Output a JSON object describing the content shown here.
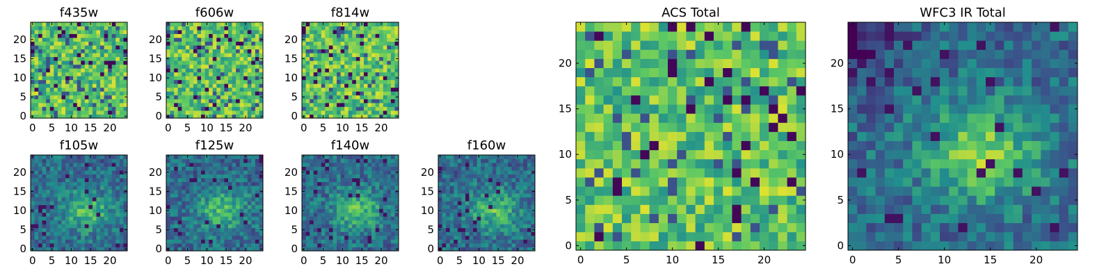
{
  "colormap": [
    "#440154",
    "#3b528b",
    "#21908d",
    "#5dc963",
    "#fde725"
  ],
  "chart_data": [
    {
      "type": "heatmap",
      "title": "f435w",
      "cmap": "viridis",
      "size": 25,
      "xlim": [
        0,
        25
      ],
      "ylim": [
        0,
        25
      ],
      "xticks": [
        0,
        5,
        10,
        15,
        20
      ],
      "yticks": [
        0,
        5,
        10,
        15,
        20
      ],
      "seed": 11,
      "style": "noise"
    },
    {
      "type": "heatmap",
      "title": "f606w",
      "cmap": "viridis",
      "size": 25,
      "xlim": [
        0,
        25
      ],
      "ylim": [
        0,
        25
      ],
      "xticks": [
        0,
        5,
        10,
        15,
        20
      ],
      "yticks": [
        0,
        5,
        10,
        15,
        20
      ],
      "seed": 23,
      "style": "noise"
    },
    {
      "type": "heatmap",
      "title": "f814w",
      "cmap": "viridis",
      "size": 25,
      "xlim": [
        0,
        25
      ],
      "ylim": [
        0,
        25
      ],
      "xticks": [
        0,
        5,
        10,
        15,
        20
      ],
      "yticks": [
        0,
        5,
        10,
        15,
        20
      ],
      "seed": 37,
      "style": "noise"
    },
    {
      "type": "heatmap",
      "title": "f105w",
      "cmap": "viridis",
      "size": 25,
      "xlim": [
        0,
        25
      ],
      "ylim": [
        0,
        25
      ],
      "xticks": [
        0,
        5,
        10,
        15,
        20
      ],
      "yticks": [
        0,
        5,
        10,
        15,
        20
      ],
      "seed": 41,
      "style": "blob"
    },
    {
      "type": "heatmap",
      "title": "f125w",
      "cmap": "viridis",
      "size": 25,
      "xlim": [
        0,
        25
      ],
      "ylim": [
        0,
        25
      ],
      "xticks": [
        0,
        5,
        10,
        15,
        20
      ],
      "yticks": [
        0,
        5,
        10,
        15,
        20
      ],
      "seed": 53,
      "style": "blob"
    },
    {
      "type": "heatmap",
      "title": "f140w",
      "cmap": "viridis",
      "size": 25,
      "xlim": [
        0,
        25
      ],
      "ylim": [
        0,
        25
      ],
      "xticks": [
        0,
        5,
        10,
        15,
        20
      ],
      "yticks": [
        0,
        5,
        10,
        15,
        20
      ],
      "seed": 67,
      "style": "blob"
    },
    {
      "type": "heatmap",
      "title": "f160w",
      "cmap": "viridis",
      "size": 25,
      "xlim": [
        0,
        25
      ],
      "ylim": [
        0,
        25
      ],
      "xticks": [
        0,
        5,
        10,
        15,
        20
      ],
      "yticks": [
        0,
        5,
        10,
        15,
        20
      ],
      "seed": 79,
      "style": "blob"
    },
    {
      "type": "heatmap",
      "title": "ACS Total",
      "cmap": "viridis",
      "size": 25,
      "xlim": [
        0,
        25
      ],
      "ylim": [
        0,
        25
      ],
      "xticks": [
        0,
        5,
        10,
        15,
        20
      ],
      "yticks": [
        0,
        5,
        10,
        15,
        20
      ],
      "seed": 97,
      "style": "noise"
    },
    {
      "type": "heatmap",
      "title": "WFC3 IR Total",
      "cmap": "viridis",
      "size": 25,
      "xlim": [
        0,
        25
      ],
      "ylim": [
        0,
        25
      ],
      "xticks": [
        0,
        5,
        10,
        15,
        20
      ],
      "yticks": [
        0,
        5,
        10,
        15,
        20
      ],
      "seed": 113,
      "style": "ir"
    }
  ]
}
